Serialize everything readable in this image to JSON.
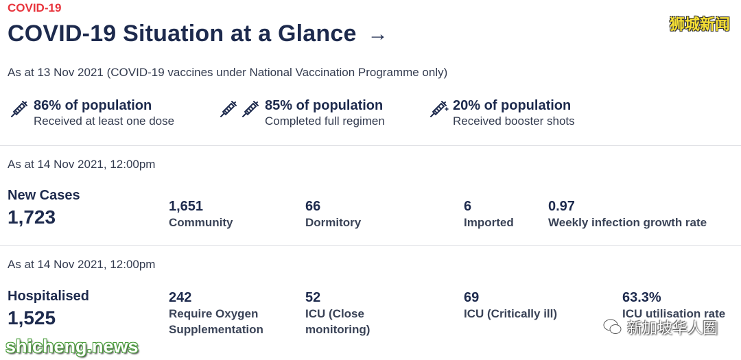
{
  "header": {
    "tag": "COVID-19",
    "title": "COVID-19 Situation at a Glance",
    "arrow": "→",
    "note": "As at 13 Nov 2021 (COVID-19 vaccines under National Vaccination Programme only)"
  },
  "watermarks": {
    "top_right": "狮城新闻",
    "bottom_left": "shicheng.news",
    "bottom_right": "新加坡华人圈"
  },
  "vaccination": [
    {
      "icon": "syringe-icon",
      "percent": "86% of population",
      "label": "Received at least one dose"
    },
    {
      "icon": "double-syringe-icon",
      "percent": "85% of population",
      "label": "Completed full regimen"
    },
    {
      "icon": "syringe-plus-icon",
      "percent": "20% of population",
      "label": "Received booster shots"
    }
  ],
  "cases": {
    "as_at": "As at 14 Nov 2021, 12:00pm",
    "title": "New Cases",
    "total": "1,723",
    "stats": [
      {
        "value": "1,651",
        "label": "Community"
      },
      {
        "value": "66",
        "label": "Dormitory"
      },
      {
        "value": "6",
        "label": "Imported"
      },
      {
        "value": "0.97",
        "label": "Weekly infection growth rate"
      }
    ]
  },
  "hospital": {
    "as_at": "As at 14 Nov 2021, 12:00pm",
    "title": "Hospitalised",
    "total": "1,525",
    "stats": [
      {
        "value": "242",
        "label_line1": "Require Oxygen",
        "label_line2": "Supplementation"
      },
      {
        "value": "52",
        "label_line1": "ICU (Close",
        "label_line2": "monitoring)"
      },
      {
        "value": "69",
        "label_line1": "ICU (Critically ill)",
        "label_line2": ""
      },
      {
        "value": "63.3%",
        "label_line1": "ICU utilisation rate",
        "label_line2": ""
      }
    ]
  },
  "colors": {
    "tag": "#e8343c",
    "text": "#1d2a4d",
    "divider": "#d9dbe0"
  }
}
